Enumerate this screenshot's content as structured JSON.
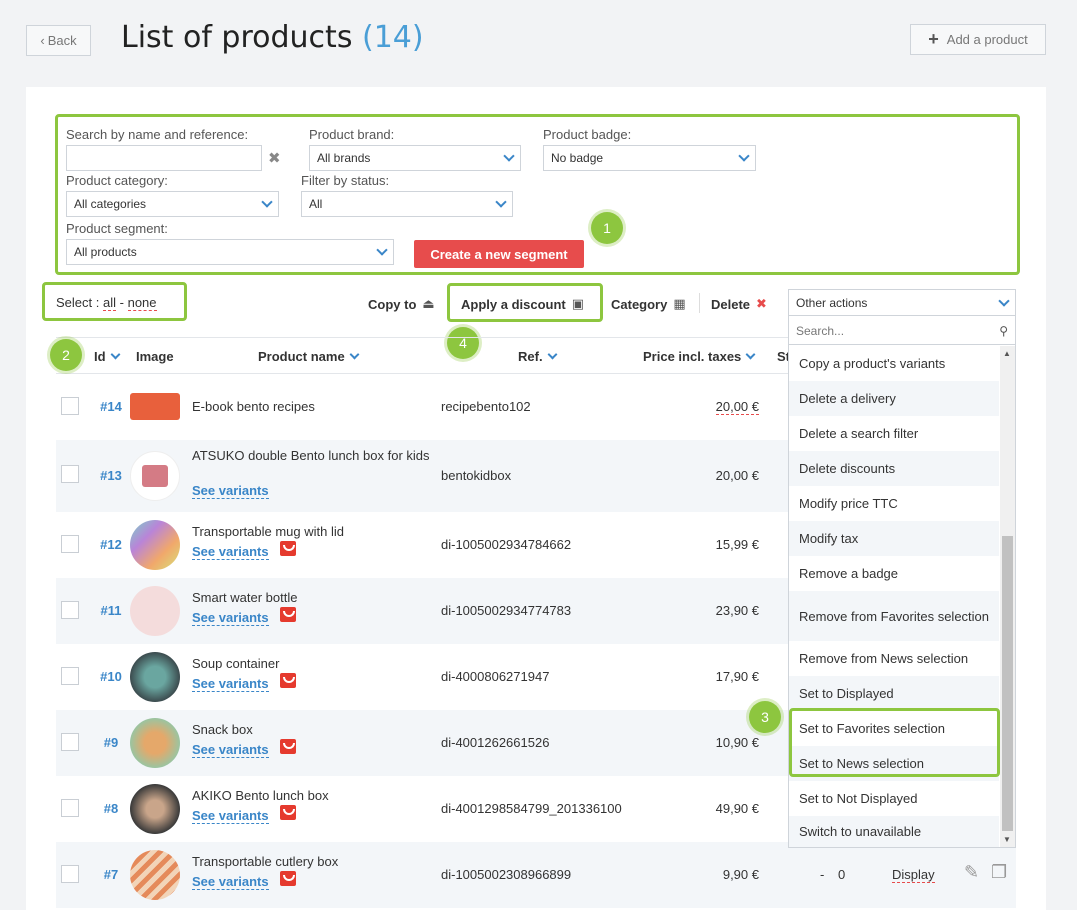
{
  "header": {
    "back_label": "Back",
    "title": "List of products",
    "count": "(14)",
    "add_label": "Add a product"
  },
  "filters": {
    "search_label": "Search by name and reference:",
    "brand_label": "Product brand:",
    "brand_value": "All brands",
    "badge_label": "Product badge:",
    "badge_value": "No badge",
    "category_label": "Product category:",
    "category_value": "All categories",
    "status_label": "Filter by status:",
    "status_value": "All",
    "segment_label": "Product segment:",
    "segment_value": "All products",
    "create_segment_label": "Create a new segment"
  },
  "toolbar": {
    "select_label": "Select :",
    "select_all": "all",
    "select_sep": "-",
    "select_none": "none",
    "copy_to": "Copy to",
    "apply_discount": "Apply a discount",
    "category": "Category",
    "delete": "Delete",
    "other_actions": "Other actions"
  },
  "columns": {
    "id": "Id",
    "image": "Image",
    "product_name": "Product name",
    "ref": "Ref.",
    "price": "Price incl. taxes",
    "stock_partial": "St"
  },
  "callouts": [
    "1",
    "2",
    "3",
    "4"
  ],
  "rows": [
    {
      "id": "#14",
      "name": "E-book bento recipes",
      "ref": "recipebento102",
      "price": "20,00 €",
      "variants": ""
    },
    {
      "id": "#13",
      "name": "ATSUKO double Bento lunch box for kids",
      "ref": "bentokidbox",
      "price": "20,00 €",
      "variants": "See variants"
    },
    {
      "id": "#12",
      "name": "Transportable mug with lid",
      "ref": "di-1005002934784662",
      "price": "15,99 €",
      "variants": "See variants"
    },
    {
      "id": "#11",
      "name": "Smart water bottle",
      "ref": "di-1005002934774783",
      "price": "23,90 €",
      "variants": "See variants"
    },
    {
      "id": "#10",
      "name": "Soup container",
      "ref": "di-4000806271947",
      "price": "17,90 €",
      "variants": "See variants"
    },
    {
      "id": "#9",
      "name": "Snack box",
      "ref": "di-4001262661526",
      "price": "10,90 €",
      "variants": "See variants"
    },
    {
      "id": "#8",
      "name": "AKIKO Bento lunch box",
      "ref": "di-4001298584799_201336100",
      "price": "49,90 €",
      "variants": "See variants"
    },
    {
      "id": "#7",
      "name": "Transportable cutlery box",
      "ref": "di-1005002308966899",
      "price": "9,90 €",
      "variants": "See variants",
      "stock": "-",
      "qty": "0",
      "status": "Display"
    }
  ],
  "dropdown": {
    "search_placeholder": "Search...",
    "items": [
      "Copy a product's variants",
      "Delete a delivery",
      "Delete a search filter",
      "Delete discounts",
      "Modify price TTC",
      "Modify tax",
      "Remove a badge",
      "Remove from Favorites selection",
      "Remove from News selection",
      "Set to Displayed",
      "Set to Favorites selection",
      "Set to News selection",
      "Set to Not Displayed",
      "Switch to unavailable"
    ]
  },
  "colors": {
    "accent": "#3a86c8",
    "highlight": "#8dc63f",
    "danger": "#e74c4c"
  }
}
